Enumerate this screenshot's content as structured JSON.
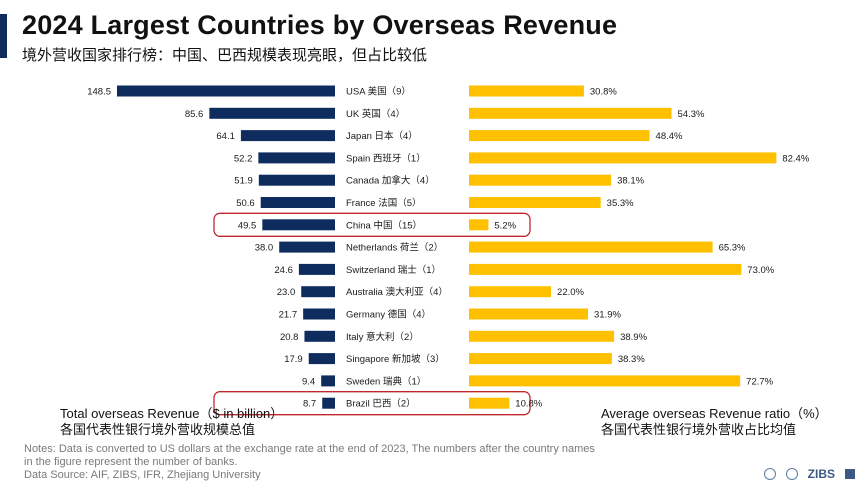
{
  "header": {
    "title": "2024 Largest Countries by Overseas Revenue",
    "subtitle": "境外营收国家排行榜：中国、巴西规模表现亮眼，但占比较低"
  },
  "colors": {
    "revenue_bar": "#0e2d5e",
    "ratio_bar": "#ffc000",
    "highlight": "#c0282d",
    "accent": "#0e2d5e"
  },
  "chart_data": {
    "type": "bar",
    "categories": [
      "USA 美国（9）",
      "UK 英国（4）",
      "Japan 日本（4）",
      "Spain 西班牙（1）",
      "Canada 加拿大（4）",
      "France 法国（5）",
      "China 中国（15）",
      "Netherlands 荷兰（2）",
      "Switzerland 瑞士（1）",
      "Australia 澳大利亚（4）",
      "Germany 德国（4）",
      "Italy 意大利（2）",
      "Singapore 新加坡（3）",
      "Sweden 瑞典（1）",
      "Brazil 巴西（2）"
    ],
    "series": [
      {
        "values": [
          148.5,
          85.6,
          64.1,
          52.2,
          51.9,
          50.6,
          49.5,
          38.0,
          24.6,
          23.0,
          21.7,
          20.8,
          17.9,
          9.4,
          8.7
        ],
        "labels": [
          "148.5",
          "85.6",
          "64.1",
          "52.2",
          "51.9",
          "50.6",
          "49.5",
          "38.0",
          "24.6",
          "23.0",
          "21.7",
          "20.8",
          "17.9",
          "9.4",
          "8.7"
        ]
      },
      {
        "values": [
          30.8,
          54.3,
          48.4,
          82.4,
          38.1,
          35.3,
          5.2,
          65.3,
          73.0,
          22.0,
          31.9,
          38.9,
          38.3,
          72.7,
          10.8
        ],
        "labels": [
          "30.8%",
          "54.3%",
          "48.4%",
          "82.4%",
          "38.1%",
          "35.3%",
          "5.2%",
          "65.3%",
          "73.0%",
          "22.0%",
          "31.9%",
          "38.9%",
          "38.3%",
          "72.7%",
          "10.8%"
        ]
      }
    ],
    "highlighted": [
      "China 中国（15）",
      "Brazil 巴西（2）"
    ]
  },
  "legend": {
    "left_en": "Total overseas Revenue（$ in billion）",
    "left_cn": "各国代表性银行境外营收规模总值",
    "right_en": "Average overseas Revenue ratio（%）",
    "right_cn": "各国代表性银行境外营收占比均值"
  },
  "footer": {
    "note_line1": "Notes: Data is converted to US dollars at the exchange rate at the end of 2023, The numbers after the country names",
    "note_line2": "in the figure represent the number of banks.",
    "source": "Data Source: AIF, ZIBS, IFR, Zhejiang University",
    "logo_zibs": "ZIBS"
  }
}
